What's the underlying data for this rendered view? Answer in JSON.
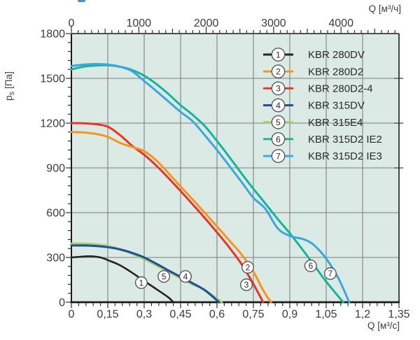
{
  "chart_data": {
    "type": "line",
    "title": "",
    "description": "Fan performance curves: static pressure vs air flow for KBR fans",
    "background_color": "#DBEAE5",
    "grid_color": "#7D807E",
    "axis_color": "#1A1A1A",
    "tick_text_color": "#3C3C3C",
    "grid_on": true,
    "x_axis_bottom": {
      "label": "Q [м³/с]",
      "min": 0,
      "max": 1.35,
      "major_step": 0.15,
      "minor_step": 0.03,
      "tick_labels": [
        "0",
        "0,15",
        "0,3",
        "0,45",
        "0,6",
        "0,75",
        "0,9",
        "1,05",
        "1,2",
        "1,35"
      ]
    },
    "x_axis_top": {
      "label": "Q [м³/ч]",
      "units_per_m3s": 3600,
      "major_ticks": [
        0,
        1000,
        2000,
        3000,
        4000
      ],
      "medium_step": 500,
      "minor_step": 100,
      "max_extent": 4850
    },
    "y_axis": {
      "label_main": "p",
      "label_sub": "s",
      "label_unit": "[Па]",
      "min": 0,
      "max": 1800,
      "major_step": 300,
      "minor_step": 60,
      "tick_labels": [
        "0",
        "300",
        "600",
        "900",
        "1200",
        "1500",
        "1800"
      ]
    },
    "legend": {
      "position": "top-right-inside",
      "items": [
        {
          "num": "1",
          "label": "KBR 280DV",
          "color": "#262223"
        },
        {
          "num": "2",
          "label": "KBR 280D2",
          "color": "#F7941E"
        },
        {
          "num": "3",
          "label": "KBR 280D2-4",
          "color": "#EC3423"
        },
        {
          "num": "4",
          "label": "KBR 315DV",
          "color": "#1D4F9E"
        },
        {
          "num": "5",
          "label": "KBR 315E4",
          "color": "#A5CF63"
        },
        {
          "num": "6",
          "label": "KBR 315D2 IE2",
          "color": "#17B498"
        },
        {
          "num": "7",
          "label": "KBR 315D2 IE3",
          "color": "#3BA7E0"
        }
      ]
    },
    "series": [
      {
        "num": "1",
        "name": "KBR 280DV",
        "color": "#262223",
        "width": 2.6,
        "points": [
          [
            0,
            300
          ],
          [
            0.05,
            306
          ],
          [
            0.08,
            308
          ],
          [
            0.12,
            300
          ],
          [
            0.15,
            282
          ],
          [
            0.2,
            248
          ],
          [
            0.25,
            198
          ],
          [
            0.3,
            142
          ],
          [
            0.35,
            88
          ],
          [
            0.4,
            32
          ],
          [
            0.42,
            0
          ]
        ]
      },
      {
        "num": "2",
        "name": "KBR 280D2",
        "color": "#F7941E",
        "width": 3,
        "points": [
          [
            0,
            1140
          ],
          [
            0.05,
            1137
          ],
          [
            0.1,
            1128
          ],
          [
            0.15,
            1108
          ],
          [
            0.2,
            1068
          ],
          [
            0.25,
            1040
          ],
          [
            0.3,
            1012
          ],
          [
            0.35,
            950
          ],
          [
            0.4,
            865
          ],
          [
            0.45,
            775
          ],
          [
            0.5,
            688
          ],
          [
            0.55,
            598
          ],
          [
            0.6,
            508
          ],
          [
            0.65,
            415
          ],
          [
            0.7,
            322
          ],
          [
            0.75,
            205
          ],
          [
            0.79,
            80
          ],
          [
            0.822,
            0
          ]
        ]
      },
      {
        "num": "3",
        "name": "KBR 280D2-4",
        "color": "#EC3423",
        "width": 3,
        "points": [
          [
            0,
            1200
          ],
          [
            0.05,
            1199
          ],
          [
            0.1,
            1193
          ],
          [
            0.15,
            1176
          ],
          [
            0.2,
            1120
          ],
          [
            0.25,
            1048
          ],
          [
            0.3,
            988
          ],
          [
            0.35,
            915
          ],
          [
            0.4,
            832
          ],
          [
            0.45,
            745
          ],
          [
            0.5,
            655
          ],
          [
            0.55,
            563
          ],
          [
            0.6,
            468
          ],
          [
            0.65,
            368
          ],
          [
            0.7,
            258
          ],
          [
            0.75,
            122
          ],
          [
            0.79,
            0
          ]
        ]
      },
      {
        "num": "4",
        "name": "KBR 315DV",
        "color": "#1D4F9E",
        "width": 3,
        "points": [
          [
            0,
            380
          ],
          [
            0.05,
            380
          ],
          [
            0.1,
            377
          ],
          [
            0.15,
            369
          ],
          [
            0.2,
            354
          ],
          [
            0.25,
            331
          ],
          [
            0.3,
            300
          ],
          [
            0.35,
            258
          ],
          [
            0.4,
            213
          ],
          [
            0.45,
            170
          ],
          [
            0.5,
            127
          ],
          [
            0.55,
            80
          ],
          [
            0.6,
            12
          ],
          [
            0.607,
            0
          ]
        ]
      },
      {
        "num": "5",
        "name": "KBR 315E4",
        "color": "#A5CF63",
        "width": 3,
        "points": [
          [
            0,
            393
          ],
          [
            0.05,
            393
          ],
          [
            0.1,
            388
          ],
          [
            0.15,
            377
          ],
          [
            0.2,
            356
          ],
          [
            0.25,
            325
          ],
          [
            0.3,
            289
          ],
          [
            0.35,
            247
          ],
          [
            0.4,
            204
          ],
          [
            0.45,
            160
          ],
          [
            0.5,
            119
          ],
          [
            0.55,
            82
          ],
          [
            0.62,
            0
          ]
        ]
      },
      {
        "num": "6",
        "name": "KBR 315D2 IE2",
        "color": "#17B498",
        "width": 3,
        "points": [
          [
            0,
            1560
          ],
          [
            0.05,
            1578
          ],
          [
            0.1,
            1586
          ],
          [
            0.15,
            1587
          ],
          [
            0.2,
            1578
          ],
          [
            0.25,
            1556
          ],
          [
            0.3,
            1518
          ],
          [
            0.35,
            1462
          ],
          [
            0.4,
            1395
          ],
          [
            0.45,
            1320
          ],
          [
            0.5,
            1255
          ],
          [
            0.55,
            1180
          ],
          [
            0.6,
            1080
          ],
          [
            0.65,
            975
          ],
          [
            0.7,
            865
          ],
          [
            0.75,
            760
          ],
          [
            0.8,
            660
          ],
          [
            0.85,
            558
          ],
          [
            0.9,
            462
          ],
          [
            0.95,
            358
          ],
          [
            1.0,
            248
          ],
          [
            1.05,
            138
          ],
          [
            1.12,
            0
          ]
        ]
      },
      {
        "num": "7",
        "name": "KBR 315D2 IE3",
        "color": "#3BA7E0",
        "width": 3,
        "points": [
          [
            0,
            1583
          ],
          [
            0.05,
            1592
          ],
          [
            0.1,
            1596
          ],
          [
            0.15,
            1592
          ],
          [
            0.2,
            1578
          ],
          [
            0.25,
            1548
          ],
          [
            0.3,
            1482
          ],
          [
            0.35,
            1415
          ],
          [
            0.4,
            1345
          ],
          [
            0.45,
            1275
          ],
          [
            0.5,
            1212
          ],
          [
            0.55,
            1118
          ],
          [
            0.6,
            1020
          ],
          [
            0.65,
            915
          ],
          [
            0.7,
            808
          ],
          [
            0.75,
            700
          ],
          [
            0.8,
            625
          ],
          [
            0.85,
            495
          ],
          [
            0.9,
            445
          ],
          [
            0.96,
            420
          ],
          [
            1.0,
            382
          ],
          [
            1.05,
            292
          ],
          [
            1.1,
            162
          ],
          [
            1.145,
            0
          ]
        ]
      }
    ],
    "curve_markers": [
      {
        "num": "1",
        "q": 0.288,
        "p": 131
      },
      {
        "num": "2",
        "q": 0.727,
        "p": 234
      },
      {
        "num": "3",
        "q": 0.721,
        "p": 117
      },
      {
        "num": "4",
        "q": 0.47,
        "p": 173
      },
      {
        "num": "5",
        "q": 0.381,
        "p": 173
      },
      {
        "num": "6",
        "q": 0.986,
        "p": 244
      },
      {
        "num": "7",
        "q": 1.067,
        "p": 192
      }
    ]
  }
}
